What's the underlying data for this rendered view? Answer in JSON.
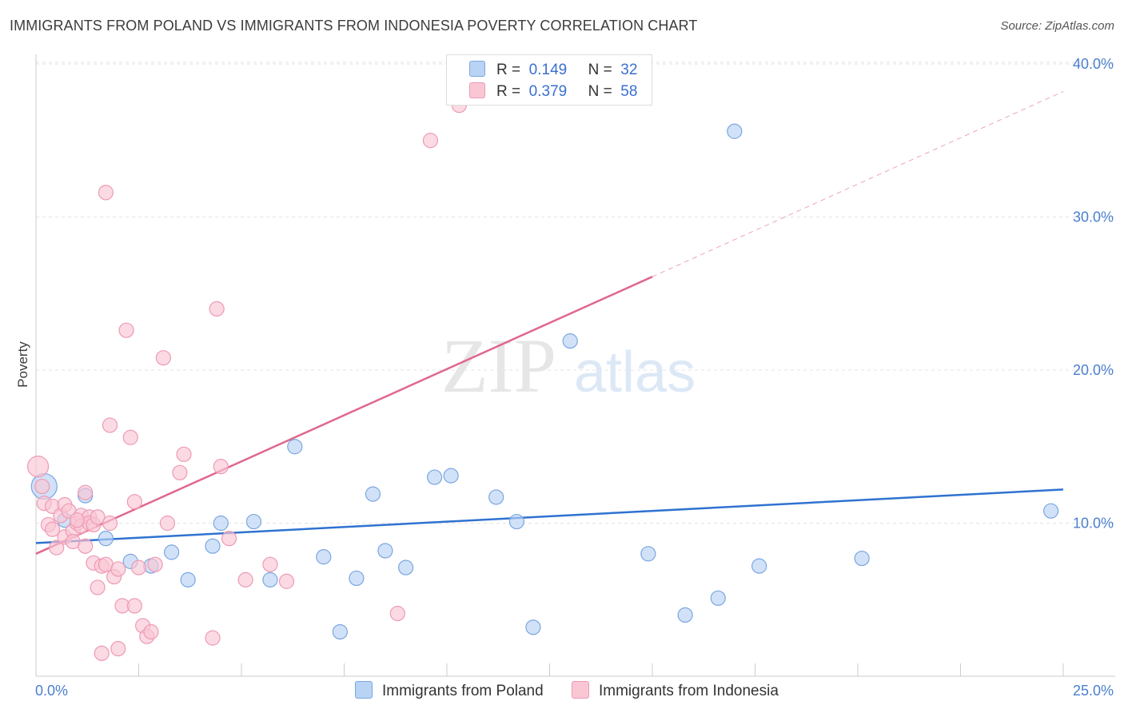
{
  "title": "IMMIGRANTS FROM POLAND VS IMMIGRANTS FROM INDONESIA POVERTY CORRELATION CHART",
  "source": "Source: ZipAtlas.com",
  "watermark": {
    "zip": "ZIP",
    "atlas": "atlas"
  },
  "colors": {
    "poland_fill": "#b9d3f5",
    "poland_stroke": "#7aa6e0",
    "poland_line": "#2f72d0",
    "indonesia_fill": "#f9c6d4",
    "indonesia_stroke": "#ee9ab4",
    "indonesia_line": "#e0678e"
  },
  "legend": {
    "rows": [
      {
        "r_label": "R =",
        "r_value": "0.149",
        "n_label": "N =",
        "n_value": "32"
      },
      {
        "r_label": "R =",
        "r_value": "0.379",
        "n_label": "N =",
        "n_value": "58"
      }
    ]
  },
  "bottom_legend": [
    "Immigrants from Poland",
    "Immigrants from Indonesia"
  ],
  "chart_data": {
    "type": "scatter",
    "ylabel": "Poverty",
    "xlim": [
      0,
      25
    ],
    "ylim": [
      0,
      40
    ],
    "x_tick_labels": [
      "0.0%",
      "25.0%"
    ],
    "y_ticks": [
      10,
      20,
      30,
      40
    ],
    "y_tick_labels": [
      "10.0%",
      "20.0%",
      "30.0%",
      "40.0%"
    ],
    "grid": true,
    "series": [
      {
        "name": "Immigrants from Poland",
        "points": [
          [
            0.2,
            12.4
          ],
          [
            1.2,
            11.8
          ],
          [
            0.7,
            10.2
          ],
          [
            1.7,
            9.0
          ],
          [
            2.3,
            7.5
          ],
          [
            2.8,
            7.2
          ],
          [
            3.3,
            8.1
          ],
          [
            3.7,
            6.3
          ],
          [
            4.3,
            8.5
          ],
          [
            4.5,
            10.0
          ],
          [
            5.3,
            10.1
          ],
          [
            5.7,
            6.3
          ],
          [
            6.3,
            15.0
          ],
          [
            7.0,
            7.8
          ],
          [
            7.4,
            2.9
          ],
          [
            7.8,
            6.4
          ],
          [
            8.2,
            11.9
          ],
          [
            8.5,
            8.2
          ],
          [
            9.0,
            7.1
          ],
          [
            9.7,
            13.0
          ],
          [
            10.1,
            13.1
          ],
          [
            11.2,
            11.7
          ],
          [
            11.7,
            10.1
          ],
          [
            12.1,
            3.2
          ],
          [
            13.0,
            21.9
          ],
          [
            14.9,
            8.0
          ],
          [
            15.8,
            4.0
          ],
          [
            16.6,
            5.1
          ],
          [
            17.0,
            35.6
          ],
          [
            17.6,
            7.2
          ],
          [
            20.1,
            7.7
          ],
          [
            24.7,
            10.8
          ]
        ]
      },
      {
        "name": "Immigrants from Indonesia",
        "points": [
          [
            0.05,
            13.7
          ],
          [
            0.15,
            12.4
          ],
          [
            0.2,
            11.3
          ],
          [
            0.3,
            9.9
          ],
          [
            0.4,
            11.1
          ],
          [
            0.4,
            9.6
          ],
          [
            0.5,
            8.4
          ],
          [
            0.6,
            10.5
          ],
          [
            0.7,
            11.2
          ],
          [
            0.7,
            9.1
          ],
          [
            0.8,
            10.8
          ],
          [
            0.9,
            9.5
          ],
          [
            0.9,
            8.8
          ],
          [
            1.0,
            10.0
          ],
          [
            1.1,
            10.5
          ],
          [
            1.1,
            9.8
          ],
          [
            1.2,
            8.5
          ],
          [
            1.2,
            12.0
          ],
          [
            1.3,
            10.4
          ],
          [
            1.3,
            10.0
          ],
          [
            1.4,
            9.9
          ],
          [
            1.4,
            7.4
          ],
          [
            1.5,
            10.4
          ],
          [
            1.5,
            5.8
          ],
          [
            1.6,
            7.2
          ],
          [
            1.6,
            1.5
          ],
          [
            1.7,
            7.3
          ],
          [
            1.7,
            31.6
          ],
          [
            1.8,
            10.0
          ],
          [
            1.8,
            16.4
          ],
          [
            1.9,
            6.5
          ],
          [
            2.0,
            7.0
          ],
          [
            2.0,
            1.8
          ],
          [
            2.1,
            4.6
          ],
          [
            2.2,
            22.6
          ],
          [
            2.3,
            15.6
          ],
          [
            2.4,
            11.4
          ],
          [
            2.4,
            4.6
          ],
          [
            2.5,
            7.1
          ],
          [
            2.6,
            3.3
          ],
          [
            2.7,
            2.6
          ],
          [
            2.8,
            2.9
          ],
          [
            2.9,
            7.3
          ],
          [
            3.1,
            20.8
          ],
          [
            3.2,
            10.0
          ],
          [
            3.5,
            13.3
          ],
          [
            3.6,
            14.5
          ],
          [
            4.3,
            2.5
          ],
          [
            4.4,
            24.0
          ],
          [
            4.5,
            13.7
          ],
          [
            4.7,
            9.0
          ],
          [
            5.1,
            6.3
          ],
          [
            5.7,
            7.3
          ],
          [
            6.1,
            6.2
          ],
          [
            8.8,
            4.1
          ],
          [
            9.6,
            35.0
          ],
          [
            10.3,
            37.3
          ],
          [
            1.0,
            10.2
          ]
        ]
      }
    ],
    "trend_lines": [
      {
        "name": "Immigrants from Poland",
        "x": [
          0,
          25
        ],
        "y": [
          8.7,
          12.2
        ]
      },
      {
        "name": "Immigrants from Indonesia",
        "x": [
          0,
          15
        ],
        "y": [
          8.0,
          26.1
        ],
        "dashed_x": [
          15,
          25
        ],
        "dashed_y": [
          26.1,
          38.2
        ]
      }
    ]
  }
}
